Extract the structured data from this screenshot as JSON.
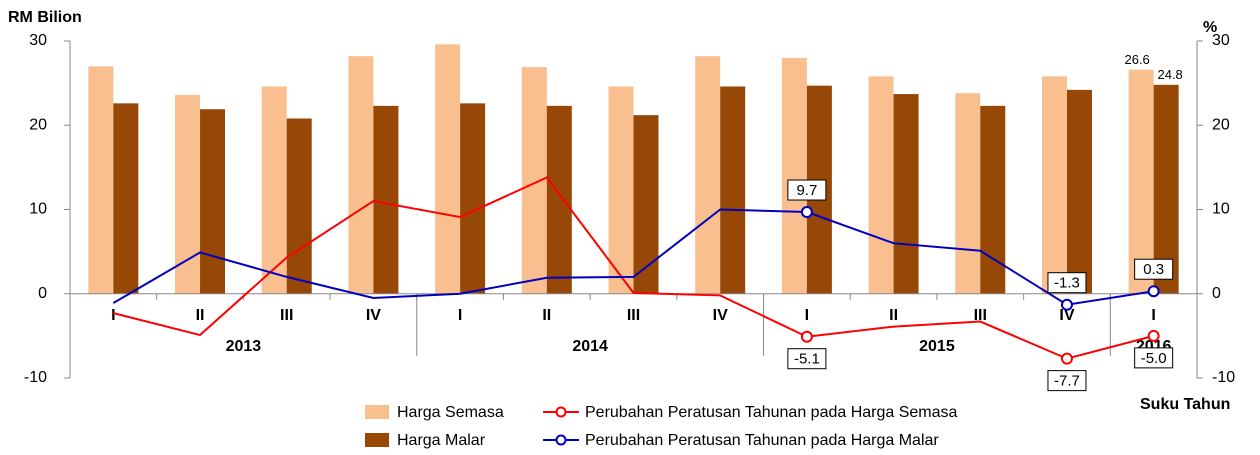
{
  "chart_data": {
    "type": "bar",
    "y_label": "RM Bilion",
    "y2_label": "%",
    "x_label": "Suku Tahun",
    "categories": [
      "I",
      "II",
      "III",
      "IV",
      "I",
      "II",
      "III",
      "IV",
      "I",
      "II",
      "III",
      "IV",
      "I"
    ],
    "groups": [
      {
        "name": "2013",
        "size": 4
      },
      {
        "name": "2014",
        "size": 4
      },
      {
        "name": "2015",
        "size": 4
      },
      {
        "name": "2016",
        "size": 1
      }
    ],
    "series": [
      {
        "name": "Harga Semasa",
        "type": "bar",
        "color": "#f9bf8f",
        "values": [
          27.0,
          23.6,
          24.6,
          28.2,
          29.6,
          26.9,
          24.6,
          28.2,
          28.0,
          25.8,
          23.8,
          25.8,
          26.6
        ],
        "value_labels": [
          null,
          null,
          null,
          null,
          null,
          null,
          null,
          null,
          null,
          null,
          null,
          null,
          "26.6"
        ]
      },
      {
        "name": "Harga Malar",
        "type": "bar",
        "color": "#974806",
        "values": [
          22.6,
          21.9,
          20.8,
          22.3,
          22.6,
          22.3,
          21.2,
          24.6,
          24.7,
          23.7,
          22.3,
          24.2,
          24.8
        ],
        "value_labels": [
          null,
          null,
          null,
          null,
          null,
          null,
          null,
          null,
          null,
          null,
          null,
          null,
          "24.8"
        ]
      },
      {
        "name": "Perubahan Peratusan Tahunan pada Harga Semasa",
        "type": "line",
        "axis": "y2",
        "color": "#ff0000",
        "values": [
          -2.3,
          -4.9,
          4.3,
          11.0,
          9.1,
          13.8,
          0.1,
          -0.2,
          -5.1,
          -3.9,
          -3.3,
          -7.7,
          -5.0
        ],
        "value_labels": [
          null,
          null,
          null,
          null,
          null,
          null,
          null,
          null,
          "-5.1",
          null,
          null,
          "-7.7",
          "-5.0"
        ]
      },
      {
        "name": "Perubahan Peratusan Tahunan pada Harga Malar",
        "type": "line",
        "axis": "y2",
        "color": "#0000c0",
        "values": [
          -1.1,
          4.9,
          2.0,
          -0.5,
          0.0,
          1.9,
          2.0,
          10.0,
          9.7,
          6.0,
          5.1,
          -1.3,
          0.3
        ],
        "value_labels": [
          null,
          null,
          null,
          null,
          null,
          null,
          null,
          null,
          "9.7",
          null,
          null,
          "-1.3",
          "0.3"
        ]
      }
    ],
    "ylim": [
      -10,
      30
    ],
    "yticks": [
      -10,
      0,
      10,
      20,
      30
    ],
    "y2lim": [
      -10,
      30
    ],
    "y2ticks": [
      -10,
      0,
      10,
      20,
      30
    ],
    "grid": false
  }
}
